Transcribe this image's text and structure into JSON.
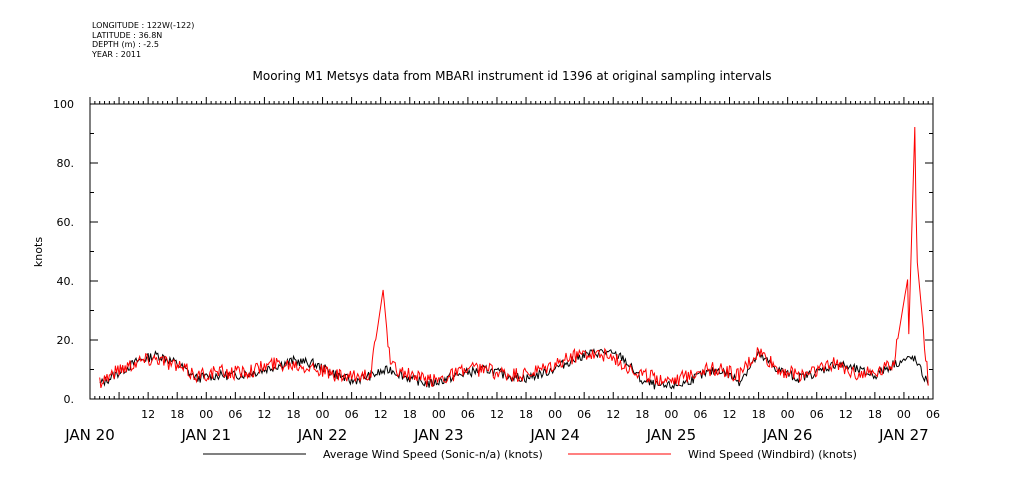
{
  "meta": {
    "longitude": "LONGITUDE : 122W(-122)",
    "latitude": "LATITUDE : 36.8N",
    "depth": "DEPTH (m) : -2.5",
    "year": "YEAR : 2011"
  },
  "colors": {
    "series_average": "#000000",
    "series_windbird": "#ff0000",
    "axis": "#000000"
  },
  "chart_data": {
    "type": "line",
    "title": "Mooring M1 Metsys data from MBARI instrument id 1396 at original sampling intervals",
    "ylabel": "knots",
    "xlabel": "",
    "ylim": [
      0,
      100
    ],
    "y_ticks": [
      "0.",
      "20.",
      "40.",
      "60.",
      "80.",
      "100"
    ],
    "x_hour_ticks": [
      "12",
      "18",
      "00",
      "06",
      "12",
      "18",
      "00",
      "06",
      "12",
      "18",
      "00",
      "06",
      "12",
      "18",
      "00",
      "06",
      "12",
      "18",
      "00",
      "06",
      "12",
      "18",
      "00",
      "06",
      "12",
      "18",
      "00",
      "06"
    ],
    "x_day_labels": [
      "JAN 20",
      "JAN 21",
      "JAN 22",
      "JAN 23",
      "JAN 24",
      "JAN 25",
      "JAN 26",
      "JAN 27"
    ],
    "x_range_hours_from_jan20_00": [
      0,
      174
    ],
    "legend_placement": "bottom",
    "grid": false,
    "series": [
      {
        "name": "Average Wind Speed (Sonic-n/a) (knots)",
        "x_hours": [
          2,
          6,
          10,
          14,
          18,
          22,
          26,
          30,
          34,
          38,
          42,
          46,
          50,
          54,
          58,
          62,
          66,
          70,
          74,
          78,
          82,
          86,
          90,
          94,
          98,
          102,
          106,
          110,
          114,
          118,
          122,
          126,
          130,
          134,
          138,
          142,
          146,
          150,
          154,
          158,
          162,
          166,
          170,
          173
        ],
        "values": [
          5,
          9,
          13,
          15,
          12,
          7,
          8,
          8,
          9,
          11,
          13,
          12,
          9,
          6,
          8,
          10,
          7,
          5,
          7,
          9,
          10,
          8,
          7,
          9,
          12,
          15,
          16,
          14,
          6,
          4,
          5,
          8,
          10,
          6,
          15,
          10,
          7,
          9,
          12,
          10,
          8,
          12,
          14,
          5
        ]
      },
      {
        "name": "Wind Speed (Windbird) (knots)",
        "x_hours": [
          2,
          6,
          10,
          14,
          18,
          22,
          26,
          30,
          34,
          38,
          42,
          46,
          50,
          54,
          58,
          60.5,
          62,
          66,
          70,
          74,
          78,
          82,
          86,
          90,
          94,
          98,
          102,
          106,
          110,
          114,
          118,
          122,
          126,
          130,
          134,
          138,
          142,
          146,
          150,
          154,
          158,
          162,
          166,
          168.8,
          169,
          170.3,
          170.6,
          173
        ],
        "values": [
          6,
          10,
          13,
          14,
          11,
          8,
          9,
          9,
          10,
          12,
          12,
          11,
          8,
          7,
          9,
          37,
          11,
          8,
          6,
          8,
          10,
          10,
          8,
          8,
          10,
          13,
          16,
          15,
          12,
          8,
          7,
          7,
          10,
          10,
          8,
          16,
          10,
          8,
          10,
          12,
          9,
          9,
          13,
          41,
          22,
          95,
          49,
          6
        ]
      }
    ]
  }
}
